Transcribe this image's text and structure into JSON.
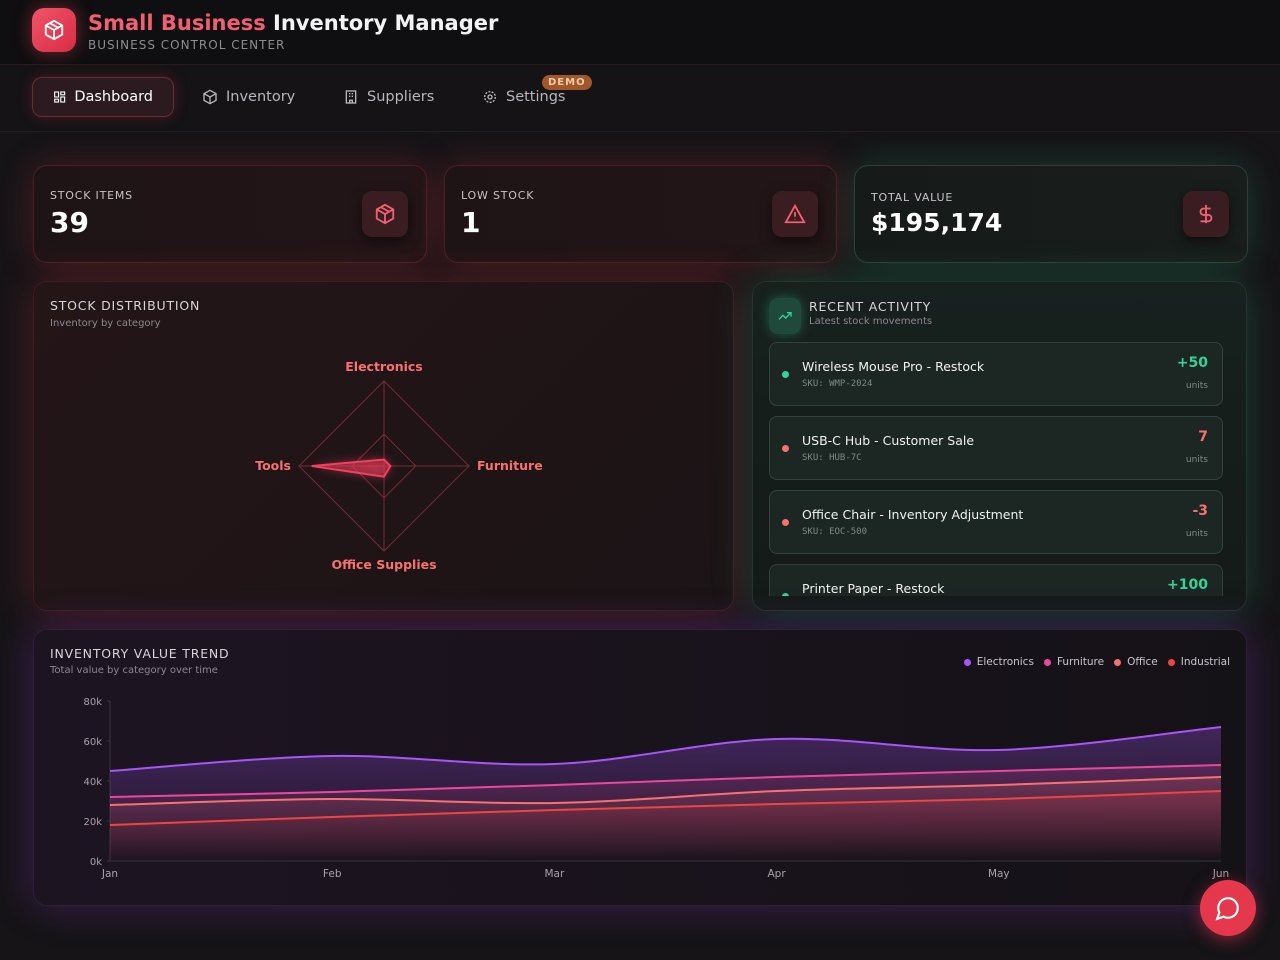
{
  "header": {
    "title_accent": "Small Business",
    "title_rest": "Inventory Manager",
    "subtitle": "BUSINESS CONTROL CENTER"
  },
  "nav": {
    "items": [
      "Dashboard",
      "Inventory",
      "Suppliers",
      "Settings"
    ],
    "badge": "DEMO"
  },
  "stats": [
    {
      "label": "STOCK ITEMS",
      "value": 39
    },
    {
      "label": "LOW STOCK",
      "value": 1
    },
    {
      "label": "TOTAL VALUE",
      "value": "$195,174"
    }
  ],
  "activity": {
    "title": "RECENT ACTIVITY",
    "subtitle": "Latest stock movements",
    "unit": "units",
    "items": [
      {
        "name": "Wireless Mouse Pro - Restock",
        "sku": "SKU: WMP-2024",
        "qty": "+50",
        "color": "#34d399"
      },
      {
        "name": "USB-C Hub - Customer Sale",
        "sku": "SKU: HUB-7C",
        "qty": "7",
        "color": "#f87171"
      },
      {
        "name": "Office Chair - Inventory Adjustment",
        "sku": "SKU: EOC-500",
        "qty": "-3",
        "color": "#f87171"
      },
      {
        "name": "Printer Paper - Restock",
        "qty": "+100",
        "color": "#34d399"
      }
    ]
  },
  "chart_data": [
    {
      "type": "radar",
      "title": "STOCK DISTRIBUTION",
      "subtitle": "Inventory by category",
      "categories": [
        "Electronics",
        "Furniture",
        "Office Supplies",
        "Tools"
      ],
      "values": [
        3,
        3,
        5,
        34
      ],
      "color": "#f43f5e",
      "rlim": [
        0,
        40
      ],
      "rticks": [
        15,
        40
      ]
    },
    {
      "type": "line",
      "title": "INVENTORY VALUE TREND",
      "subtitle": "Total value by category over time",
      "categories": [
        "Jan",
        "Feb",
        "Mar",
        "Apr",
        "May",
        "Jun"
      ],
      "series": [
        {
          "name": "Electronics",
          "color": "#a855f7",
          "values": [
            45,
            52.5,
            48.5,
            61,
            55.5,
            67
          ]
        },
        {
          "name": "Furniture",
          "color": "#ec4899",
          "values": [
            32,
            34.5,
            38,
            42,
            45,
            48
          ]
        },
        {
          "name": "Office",
          "color": "#f87171",
          "values": [
            28,
            31,
            29,
            35,
            38,
            42
          ]
        },
        {
          "name": "Industrial",
          "color": "#ef4444",
          "values": [
            18,
            22,
            25.5,
            28.5,
            31,
            35
          ]
        }
      ],
      "ylim": [
        0,
        80
      ],
      "yticks": [
        {
          "value": 0,
          "label": "0k"
        },
        {
          "value": 20,
          "label": "20k"
        },
        {
          "value": 40,
          "label": "40k"
        },
        {
          "value": 60,
          "label": "60k"
        },
        {
          "value": 80,
          "label": "80k"
        }
      ],
      "legend": "top-right"
    }
  ]
}
